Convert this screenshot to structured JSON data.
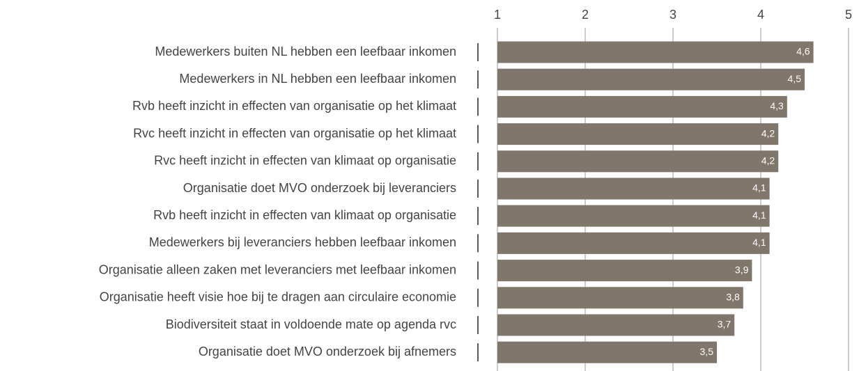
{
  "chart_data": {
    "type": "barh",
    "categories": [
      "Medewerkers buiten NL hebben een leefbaar inkomen",
      "Medewerkers in NL hebben een leefbaar inkomen",
      "Rvb heeft inzicht in effecten van organisatie op het klimaat",
      "Rvc heeft inzicht in effecten van organisatie op het klimaat",
      "Rvc heeft inzicht in effecten van klimaat op organisatie",
      "Organisatie doet MVO onderzoek bij leveranciers",
      "Rvb heeft inzicht in effecten van klimaat op organisatie",
      "Medewerkers bij leveranciers hebben leefbaar inkomen",
      "Organisatie alleen zaken met leveranciers met leefbaar inkomen",
      "Organisatie heeft visie hoe bij te dragen aan circulaire economie",
      "Biodiversiteit staat in voldoende mate op agenda rvc",
      "Organisatie doet MVO onderzoek bij afnemers"
    ],
    "values": [
      4.6,
      4.5,
      4.3,
      4.2,
      4.2,
      4.1,
      4.1,
      4.1,
      3.9,
      3.8,
      3.7,
      3.5
    ],
    "value_labels": [
      "4,6",
      "4,5",
      "4,3",
      "4,2",
      "4,2",
      "4,1",
      "4,1",
      "4,1",
      "3,9",
      "3,8",
      "3,7",
      "3,5"
    ],
    "color": "#80766c",
    "xlim": [
      1,
      5
    ],
    "xticks": [
      1,
      2,
      3,
      4,
      5
    ],
    "grid": true
  }
}
